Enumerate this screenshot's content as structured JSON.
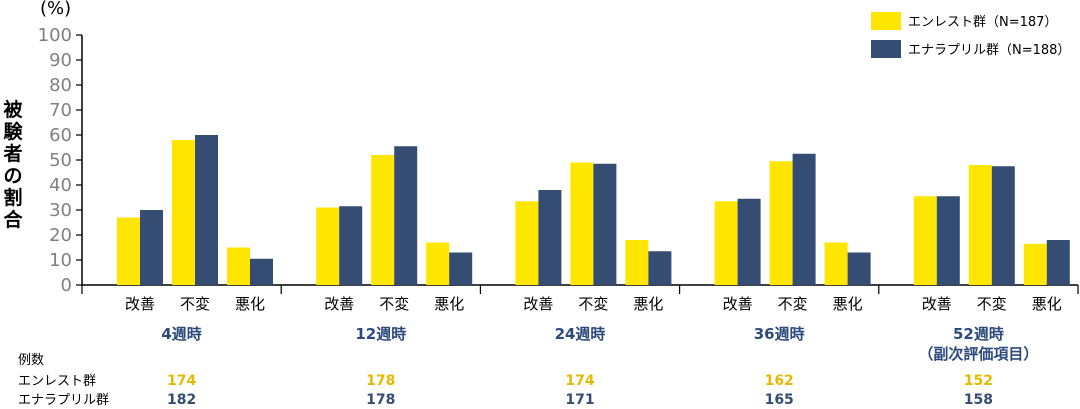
{
  "chart_data": {
    "type": "bar",
    "ylabel": "被験者の割合",
    "y_unit": "(%)",
    "ylim": [
      0,
      100
    ],
    "y_ticks": [
      0,
      10,
      20,
      30,
      40,
      50,
      60,
      70,
      80,
      90,
      100
    ],
    "categories": [
      "改善",
      "不変",
      "悪化"
    ],
    "groups": [
      {
        "label": "4週時",
        "sublabel": ""
      },
      {
        "label": "12週時",
        "sublabel": ""
      },
      {
        "label": "24週時",
        "sublabel": ""
      },
      {
        "label": "36週時",
        "sublabel": ""
      },
      {
        "label": "52週時",
        "sublabel": "（副次評価項目）"
      }
    ],
    "series": [
      {
        "name": "エンレスト群（N=187）",
        "color": "#ffe600",
        "values": [
          [
            27,
            58,
            15
          ],
          [
            31,
            52,
            17
          ],
          [
            33.5,
            49,
            18
          ],
          [
            33.5,
            49.5,
            17
          ],
          [
            35.5,
            48,
            16.5
          ]
        ]
      },
      {
        "name": "エナラプリル群（N=188）",
        "color": "#354d73",
        "values": [
          [
            30,
            60,
            10.5
          ],
          [
            31.5,
            55.5,
            13
          ],
          [
            38,
            48.5,
            13.5
          ],
          [
            34.5,
            52.5,
            13
          ],
          [
            35.5,
            47.5,
            18
          ]
        ]
      }
    ],
    "legend_position": "top-right",
    "grid": false
  },
  "counts": {
    "title": "例数",
    "rows": [
      {
        "label": "エンレスト群",
        "color": "#e6b800",
        "values": [
          "174",
          "178",
          "174",
          "162",
          "152"
        ]
      },
      {
        "label": "エナラプリル群",
        "color": "#354d73",
        "values": [
          "182",
          "178",
          "171",
          "165",
          "158"
        ]
      }
    ]
  }
}
